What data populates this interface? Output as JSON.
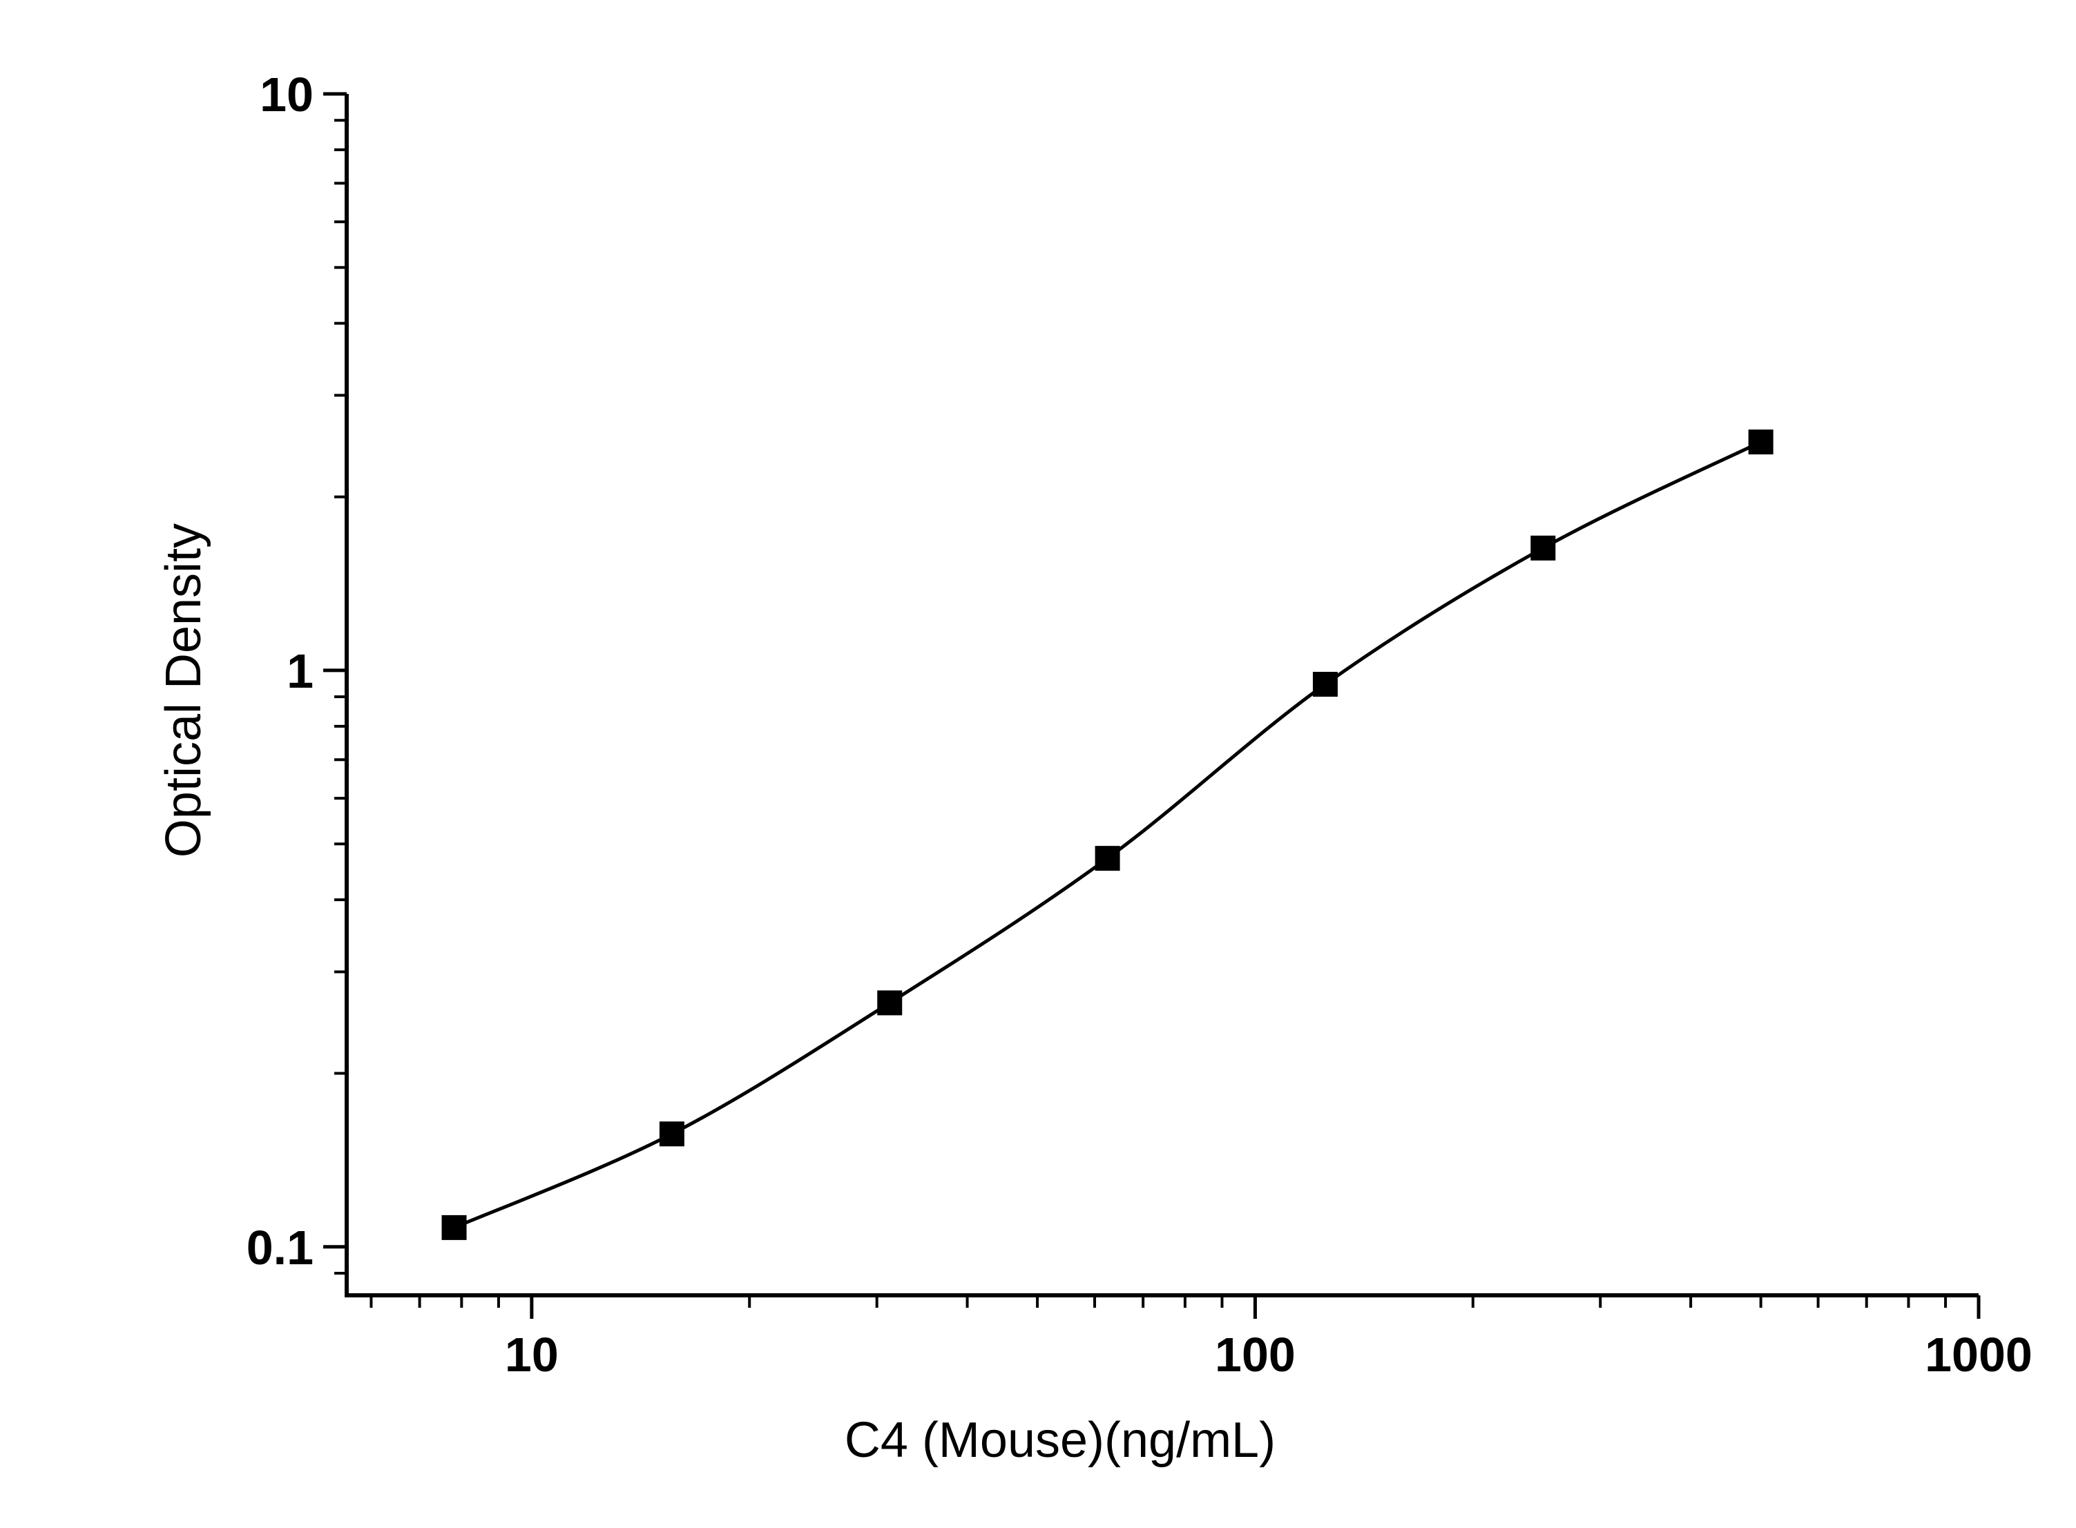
{
  "chart_data": {
    "type": "scatter",
    "x_label": "C4 (Mouse)(ng/mL)",
    "y_label": "Optical Density",
    "x": [
      7.8125,
      15.625,
      31.25,
      62.5,
      125,
      250,
      500
    ],
    "series": [
      {
        "color": "#000000",
        "values": [
          0.108,
          0.157,
          0.265,
          0.472,
          0.946,
          1.63,
          2.49
        ]
      }
    ],
    "xlim": [
      5.55,
      1000
    ],
    "ylim": [
      0.0824,
      10
    ],
    "xticks": [
      10,
      100,
      1000
    ],
    "yticks": [
      0.1,
      1,
      10
    ],
    "xscale": "log",
    "yscale": "log",
    "grid": false
  }
}
